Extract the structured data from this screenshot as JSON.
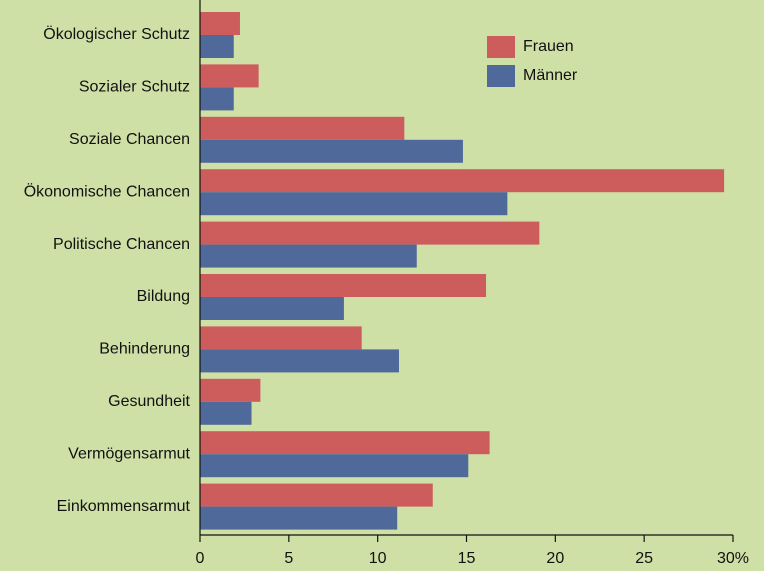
{
  "chart_data": {
    "type": "bar",
    "orientation": "horizontal",
    "categories": [
      "Ökologischer Schutz",
      "Sozialer Schutz",
      "Soziale Chancen",
      "Ökonomische Chancen",
      "Politische Chancen",
      "Bildung",
      "Behinderung",
      "Gesundheit",
      "Vermögensarmut",
      "Einkommensarmut"
    ],
    "series": [
      {
        "name": "Frauen",
        "color": "#cd5c5c",
        "values": [
          2.25,
          3.3,
          11.5,
          29.5,
          19.1,
          16.1,
          9.1,
          3.4,
          16.3,
          13.1
        ]
      },
      {
        "name": "Männer",
        "color": "#4f6a9a",
        "values": [
          1.9,
          1.9,
          14.8,
          17.3,
          12.2,
          8.1,
          11.2,
          2.9,
          15.1,
          11.1
        ]
      }
    ],
    "xlim": [
      0,
      30
    ],
    "xticks": [
      0,
      5,
      10,
      15,
      20,
      25,
      {
        "value": 30,
        "label": "30%"
      }
    ],
    "legend": "top-right"
  }
}
